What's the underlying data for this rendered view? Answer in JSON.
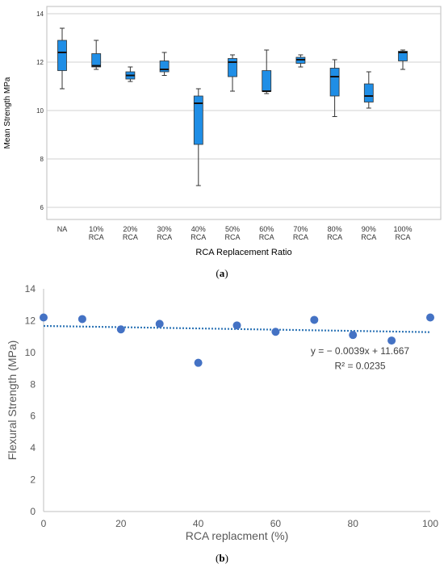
{
  "panel_labels": {
    "a": "(a)",
    "b": "(b)"
  },
  "chart_data": [
    {
      "type": "box",
      "title": "",
      "xlabel": "RCA Replacement Ratio",
      "ylabel": "Mean Strength MPa",
      "ylim": [
        5.5,
        14.3
      ],
      "yticks": [
        6,
        8,
        10,
        12,
        14
      ],
      "grid": "horizontal",
      "box_color": "#1f8ee6",
      "categories": [
        {
          "lines": [
            "NA"
          ]
        },
        {
          "lines": [
            "10%",
            "RCA"
          ]
        },
        {
          "lines": [
            "20%",
            "RCA"
          ]
        },
        {
          "lines": [
            "30%",
            "RCA"
          ]
        },
        {
          "lines": [
            "40%",
            "RCA"
          ]
        },
        {
          "lines": [
            "50%",
            "RCA"
          ]
        },
        {
          "lines": [
            "60%",
            "RCA"
          ]
        },
        {
          "lines": [
            "70%",
            "RCA"
          ]
        },
        {
          "lines": [
            "80%",
            "RCA"
          ]
        },
        {
          "lines": [
            "90%",
            "RCA"
          ]
        },
        {
          "lines": [
            "100%",
            "RCA"
          ]
        }
      ],
      "boxes": [
        {
          "min": 10.9,
          "q1": 11.65,
          "median": 12.4,
          "q3": 12.9,
          "max": 13.4
        },
        {
          "min": 11.7,
          "q1": 11.8,
          "median": 11.85,
          "q3": 12.35,
          "max": 12.9
        },
        {
          "min": 11.2,
          "q1": 11.3,
          "median": 11.45,
          "q3": 11.6,
          "max": 11.8
        },
        {
          "min": 11.45,
          "q1": 11.6,
          "median": 11.7,
          "q3": 12.05,
          "max": 12.4
        },
        {
          "min": 6.9,
          "q1": 8.6,
          "median": 10.3,
          "q3": 10.6,
          "max": 10.9
        },
        {
          "min": 10.8,
          "q1": 11.4,
          "median": 12.0,
          "q3": 12.15,
          "max": 12.3
        },
        {
          "min": 10.7,
          "q1": 10.8,
          "median": 10.8,
          "q3": 11.65,
          "max": 12.5
        },
        {
          "min": 11.8,
          "q1": 11.95,
          "median": 12.1,
          "q3": 12.2,
          "max": 12.3
        },
        {
          "min": 9.75,
          "q1": 10.6,
          "median": 11.4,
          "q3": 11.75,
          "max": 12.1
        },
        {
          "min": 10.1,
          "q1": 10.35,
          "median": 10.6,
          "q3": 11.1,
          "max": 11.6
        },
        {
          "min": 11.7,
          "q1": 12.05,
          "median": 12.4,
          "q3": 12.45,
          "max": 12.5
        }
      ]
    },
    {
      "type": "scatter",
      "title": "",
      "xlabel": "RCA replacment (%)",
      "ylabel": "Flexural Strength (MPa)",
      "xlim": [
        0,
        100
      ],
      "ylim": [
        0,
        14
      ],
      "xticks": [
        0,
        20,
        40,
        60,
        80,
        100
      ],
      "yticks": [
        0,
        2,
        4,
        6,
        8,
        10,
        12,
        14
      ],
      "point_color": "#4472c4",
      "trendline_color": "#2e75b6",
      "points": [
        {
          "x": 0,
          "y": 12.2
        },
        {
          "x": 10,
          "y": 12.1
        },
        {
          "x": 20,
          "y": 11.45
        },
        {
          "x": 30,
          "y": 11.8
        },
        {
          "x": 40,
          "y": 9.35
        },
        {
          "x": 50,
          "y": 11.7
        },
        {
          "x": 60,
          "y": 11.3
        },
        {
          "x": 70,
          "y": 12.05
        },
        {
          "x": 80,
          "y": 11.1
        },
        {
          "x": 90,
          "y": 10.75
        },
        {
          "x": 100,
          "y": 12.2
        }
      ],
      "trendline": {
        "slope": -0.0039,
        "intercept": 11.667
      },
      "annotations": {
        "equation": "y = − 0.0039x + 11.667",
        "r_squared": "R² = 0.0235"
      }
    }
  ]
}
